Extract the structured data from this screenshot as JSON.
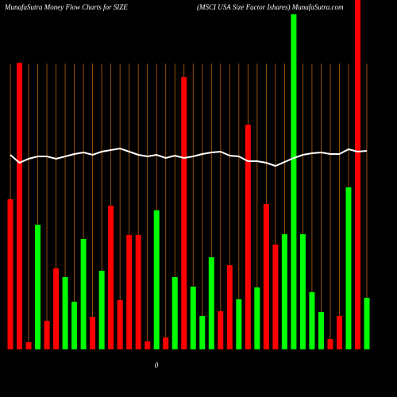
{
  "chart_data": {
    "type": "bar",
    "title": "MunafaSutra  Money Flow  Charts for SIZE",
    "subtitle": "(MSCI USA Size   Factor Ishares) MunafaSutra.com",
    "zero_label": "0",
    "ylim": [
      0,
      440
    ],
    "grid": true,
    "grid_color": "#b8620a",
    "background": "#000000",
    "values": [
      189,
      361,
      9,
      157,
      36,
      102,
      91,
      60,
      139,
      41,
      99,
      181,
      62,
      144,
      144,
      10,
      175,
      15,
      91,
      343,
      79,
      42,
      116,
      48,
      106,
      63,
      283,
      78,
      183,
      132,
      145,
      422,
      145,
      72,
      47,
      13,
      42,
      204,
      440,
      65
    ],
    "colors": [
      "#ff0000",
      "#ff0000",
      "#ff0000",
      "#00ff00",
      "#ff0000",
      "#ff0000",
      "#00ff00",
      "#00ff00",
      "#00ff00",
      "#ff0000",
      "#00ff00",
      "#ff0000",
      "#ff0000",
      "#ff0000",
      "#ff0000",
      "#ff0000",
      "#00ff00",
      "#ff0000",
      "#00ff00",
      "#ff0000",
      "#00ff00",
      "#00ff00",
      "#00ff00",
      "#ff0000",
      "#ff0000",
      "#00ff00",
      "#ff0000",
      "#00ff00",
      "#ff0000",
      "#ff0000",
      "#00ff00",
      "#00ff00",
      "#00ff00",
      "#00ff00",
      "#00ff00",
      "#ff0000",
      "#ff0000",
      "#00ff00",
      "#ff0000",
      "#00ff00"
    ],
    "line": {
      "color": "#ffffff",
      "values": [
        245,
        235,
        240,
        243,
        243,
        240,
        243,
        246,
        248,
        245,
        249,
        251,
        253,
        249,
        245,
        243,
        245,
        241,
        244,
        241,
        243,
        246,
        248,
        249,
        244,
        243,
        237,
        237,
        235,
        231,
        236,
        241,
        245,
        247,
        248,
        246,
        246,
        252,
        249,
        250
      ]
    }
  }
}
